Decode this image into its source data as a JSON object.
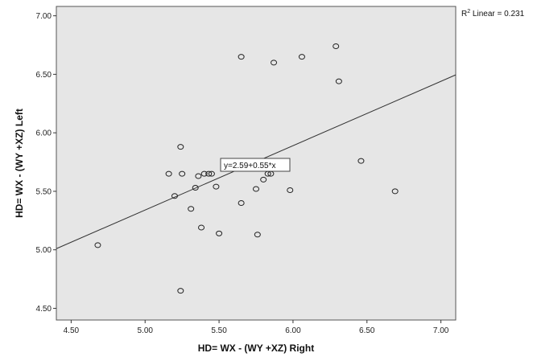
{
  "chart_data": {
    "type": "scatter",
    "xlabel": "HD= WX - (WY +XZ) Right",
    "ylabel": "HD= WX - (WY +XZ) Left",
    "xlim": [
      4.4,
      7.1
    ],
    "ylim": [
      4.4,
      7.08
    ],
    "x_ticks": [
      "4.50",
      "5.00",
      "5.50",
      "6.00",
      "6.50",
      "7.00"
    ],
    "y_ticks": [
      "4.50",
      "5.00",
      "5.50",
      "6.00",
      "6.50",
      "7.00"
    ],
    "grid": false,
    "fit_line": {
      "intercept": 2.59,
      "slope": 0.55,
      "label": "y=2.59+0.55*x"
    },
    "r2_label": {
      "prefix": "R",
      "sup": "2",
      "rest": " Linear = 0.231"
    },
    "points": [
      {
        "x": 4.68,
        "y": 5.04
      },
      {
        "x": 5.16,
        "y": 5.65
      },
      {
        "x": 5.2,
        "y": 5.46
      },
      {
        "x": 5.24,
        "y": 5.88
      },
      {
        "x": 5.25,
        "y": 5.65
      },
      {
        "x": 5.24,
        "y": 4.65
      },
      {
        "x": 5.31,
        "y": 5.35
      },
      {
        "x": 5.34,
        "y": 5.53
      },
      {
        "x": 5.36,
        "y": 5.63
      },
      {
        "x": 5.38,
        "y": 5.19
      },
      {
        "x": 5.4,
        "y": 5.65
      },
      {
        "x": 5.43,
        "y": 5.65
      },
      {
        "x": 5.45,
        "y": 5.65
      },
      {
        "x": 5.48,
        "y": 5.54
      },
      {
        "x": 5.5,
        "y": 5.14
      },
      {
        "x": 5.65,
        "y": 6.65
      },
      {
        "x": 5.65,
        "y": 5.4
      },
      {
        "x": 5.75,
        "y": 5.52
      },
      {
        "x": 5.76,
        "y": 5.13
      },
      {
        "x": 5.8,
        "y": 5.6
      },
      {
        "x": 5.83,
        "y": 5.65
      },
      {
        "x": 5.85,
        "y": 5.65
      },
      {
        "x": 5.87,
        "y": 6.6
      },
      {
        "x": 5.9,
        "y": 5.7
      },
      {
        "x": 5.98,
        "y": 5.51
      },
      {
        "x": 6.06,
        "y": 6.65
      },
      {
        "x": 6.29,
        "y": 6.74
      },
      {
        "x": 6.31,
        "y": 6.44
      },
      {
        "x": 6.46,
        "y": 5.76
      },
      {
        "x": 6.69,
        "y": 5.5
      }
    ]
  },
  "colors": {
    "plot_background": "#e6e6e6",
    "marker_stroke": "#222222",
    "line": "#333333"
  }
}
